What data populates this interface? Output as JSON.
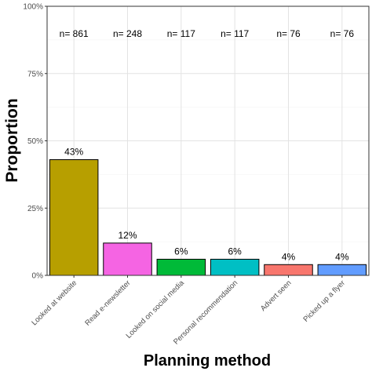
{
  "chart_data": {
    "type": "bar",
    "title": "",
    "xlabel": "Planning method",
    "ylabel": "Proportion",
    "ylim": [
      0,
      1
    ],
    "yticks": [
      0,
      0.25,
      0.5,
      0.75,
      1
    ],
    "ytick_labels": [
      "0%",
      "25%",
      "50%",
      "75%",
      "100%"
    ],
    "grid": true,
    "categories": [
      "Looked at website",
      "Read e-newsletter",
      "Looked on social media",
      "Personal recommendation",
      "Advert seen",
      "Picked up a flyer"
    ],
    "values": [
      0.43,
      0.12,
      0.06,
      0.06,
      0.04,
      0.04
    ],
    "value_labels": [
      "43%",
      "12%",
      "6%",
      "6%",
      "4%",
      "4%"
    ],
    "n_labels": [
      "n= 861",
      "n= 248",
      "n= 117",
      "n= 117",
      "n= 76",
      "n= 76"
    ],
    "colors": [
      "#B79F00",
      "#F564E3",
      "#00BA38",
      "#00BFC4",
      "#F8766D",
      "#619CFF"
    ]
  }
}
